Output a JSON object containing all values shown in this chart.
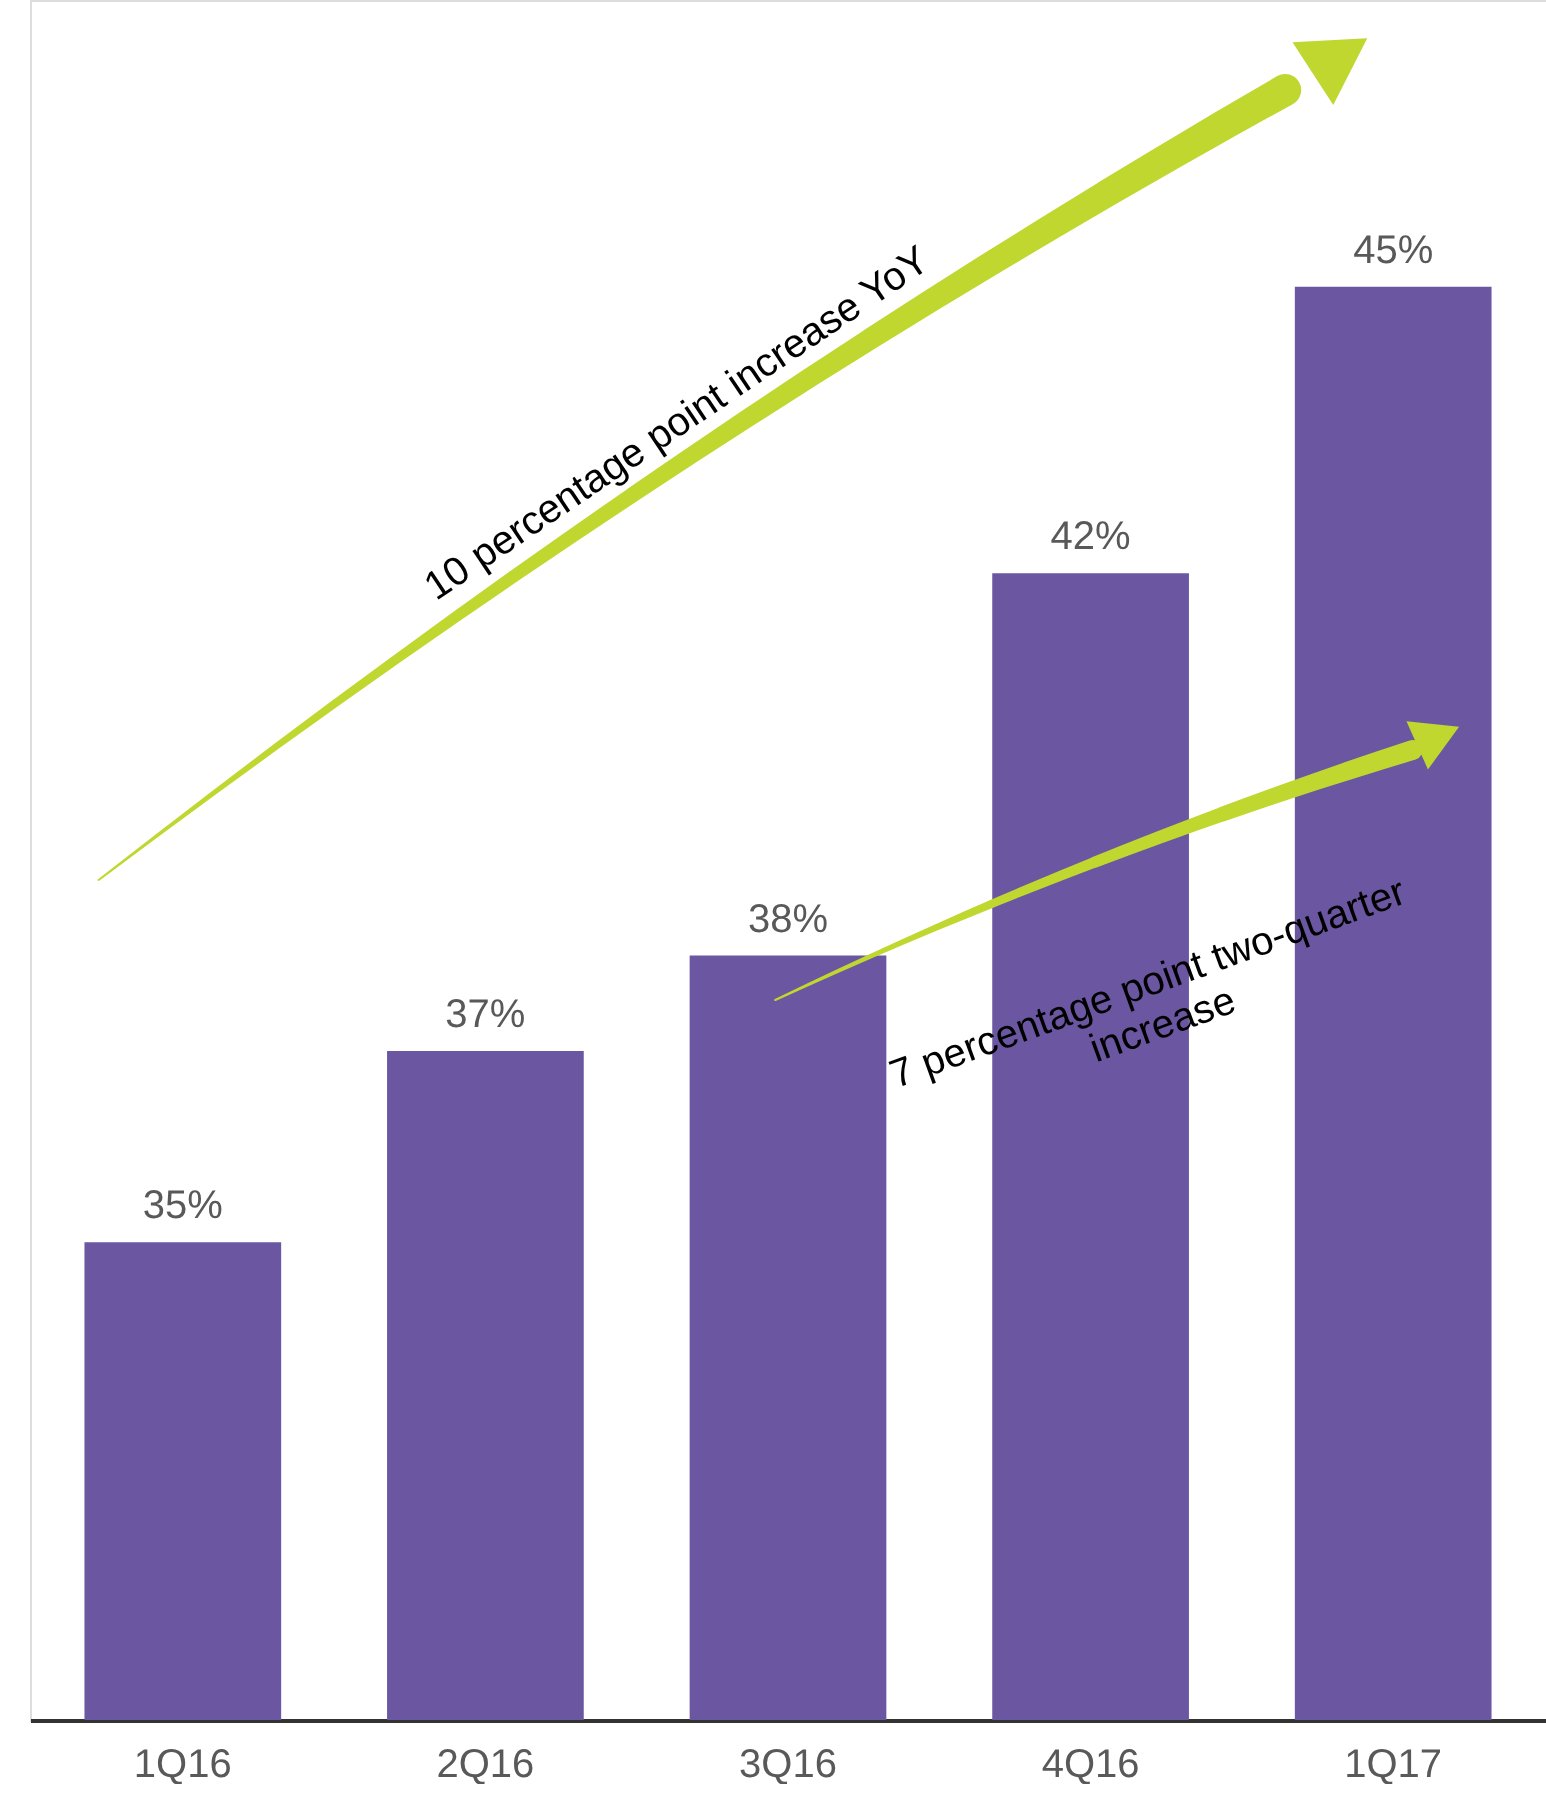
{
  "chart_data": {
    "type": "bar",
    "categories": [
      "1Q16",
      "2Q16",
      "3Q16",
      "4Q16",
      "1Q17"
    ],
    "values": [
      35,
      37,
      38,
      42,
      45
    ],
    "value_labels": [
      "35%",
      "37%",
      "38%",
      "42%",
      "45%"
    ],
    "color": "#6b56a1",
    "ylim": [
      30,
      48
    ],
    "tick_labels": "x",
    "annotations": [
      "10 percentage point increase YoY",
      "7 percentage point two-quarter\nincrease"
    ]
  }
}
